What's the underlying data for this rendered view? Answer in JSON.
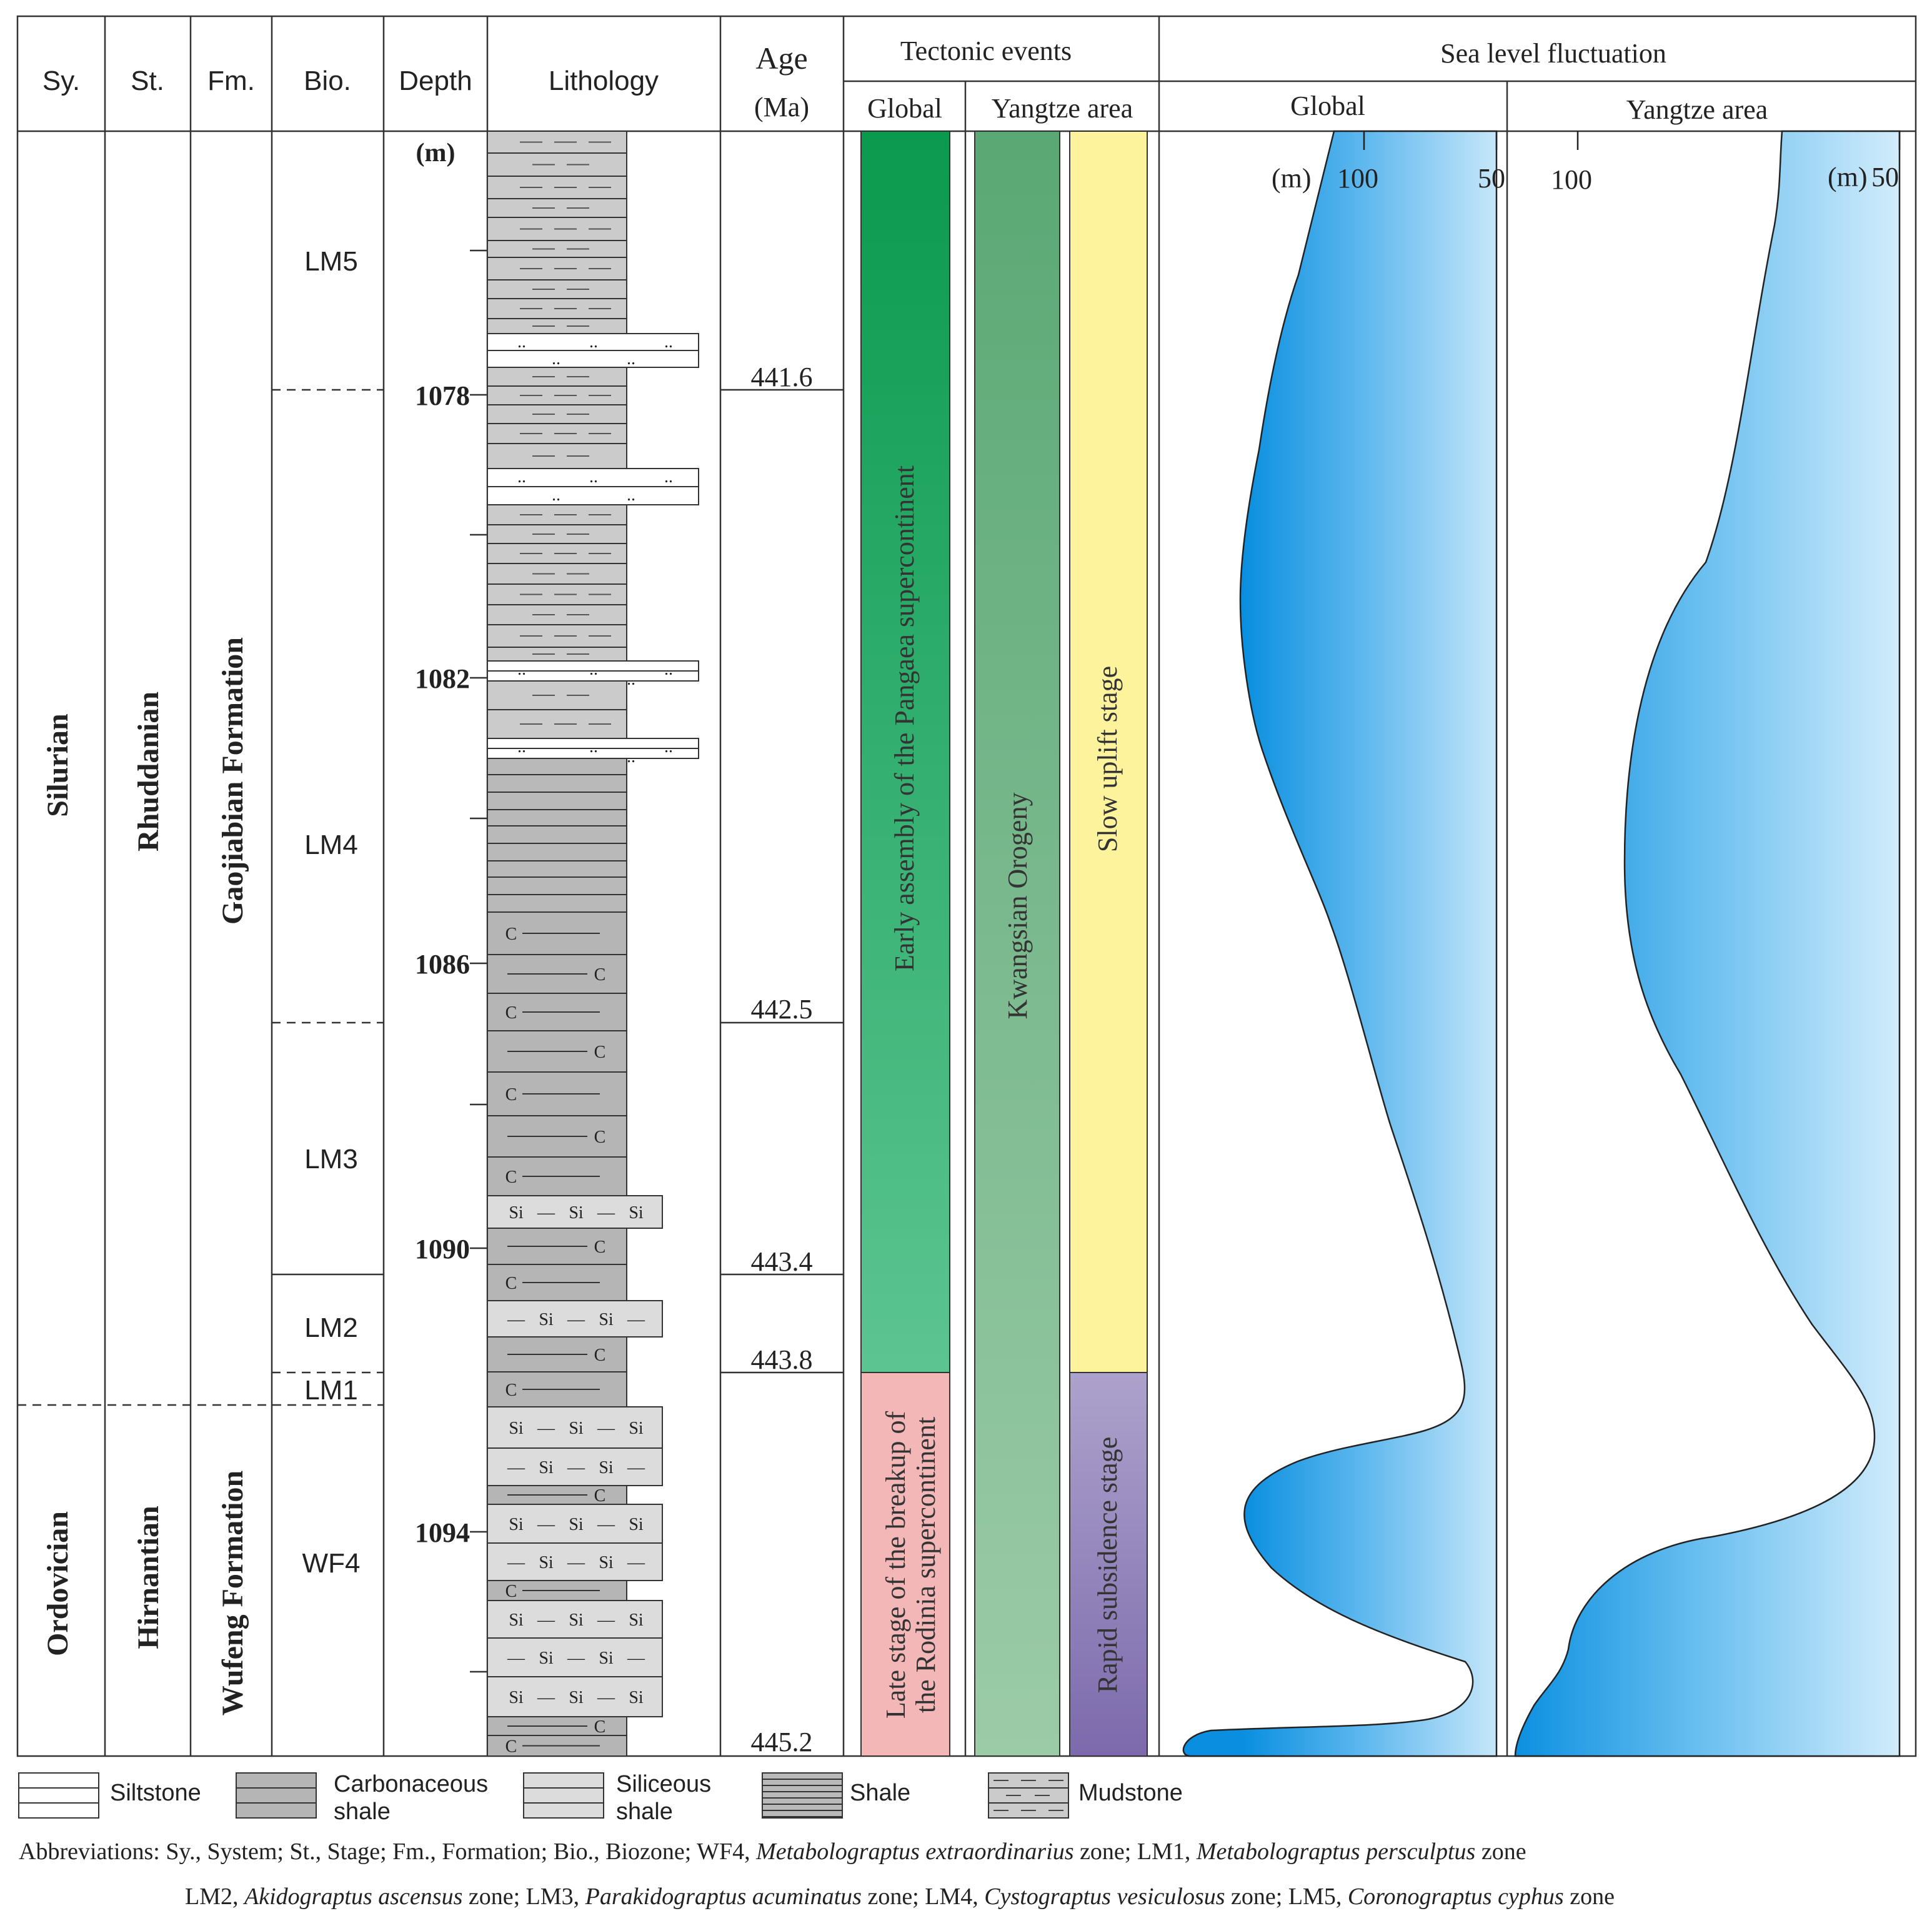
{
  "headers": {
    "system": "Sy.",
    "stage": "St.",
    "formation": "Fm.",
    "biozone": "Bio.",
    "depth": "Depth",
    "lithology": "Lithology",
    "age": "Age",
    "age_unit": "(Ma)",
    "tectonic": "Tectonic events",
    "tectonic_global": "Global",
    "tectonic_yangtze": "Yangtze area",
    "sea_level": "Sea  level  fluctuation",
    "sea_global": "Global",
    "sea_yangtze": "Yangtze area"
  },
  "depth_unit": "(m)",
  "depth_labels": [
    "1078",
    "1082",
    "1086",
    "1090",
    "1094"
  ],
  "systems": [
    "Silurian",
    "Ordovician"
  ],
  "stages": [
    "Rhuddanian",
    "Hirnantian"
  ],
  "formations": [
    "Gaojiabian  Formation",
    "Wufeng  Formation"
  ],
  "biozones": [
    "LM5",
    "LM4",
    "LM3",
    "LM2",
    "LM1",
    "WF4"
  ],
  "ages": [
    "441.6",
    "442.5",
    "443.4",
    "443.8",
    "445.2"
  ],
  "tectonic": {
    "global_upper": "Early assembly of the Pangaea supercontinent",
    "global_lower_1": "Late stage of the breakup of",
    "global_lower_2": "the Rodinia supercontinent",
    "yangtze_orogeny": "Kwangsian   Orogeny",
    "yangtze_upper": "Slow uplift stage",
    "yangtze_lower": "Rapid subsidence stage"
  },
  "sea_level": {
    "global_axis": {
      "unit": "(m)",
      "ticks": [
        "100",
        "50"
      ]
    },
    "yangtze_axis": {
      "unit": "(m)",
      "ticks": [
        "100",
        "50"
      ]
    }
  },
  "legend": [
    "Siltstone",
    "Carbonaceous shale",
    "Siliceous shale",
    "Shale",
    "Mudstone"
  ],
  "abbrev_line1": {
    "prefix": "Abbreviations: Sy., System; St., Stage; Fm., Formation;  Bio., Biozone;  WF4, ",
    "wf4": "Metabolograptus extraordinarius",
    "mid": " zone; LM1, ",
    "lm1": "Metabolograptus persculptus",
    "end": " zone"
  },
  "abbrev_line2": {
    "prefix": "LM2, ",
    "lm2": "Akidograptus ascensus",
    "a": " zone; LM3, ",
    "lm3": "Parakidograptus acuminatus",
    "b": " zone; LM4, ",
    "lm4": "Cystograptus vesiculosus",
    "c": " zone; LM5, ",
    "lm5": "Coronograptus cyphus",
    "end": " zone"
  },
  "colors": {
    "pangaea_top": "#0a9a4e",
    "pangaea_bottom": "#5cc491",
    "rodinia": "#f3b7b7",
    "kwangsian_top": "#5aa874",
    "kwangsian_bottom": "#9ccba8",
    "slow_uplift": "#fdf39d",
    "subsidence_top": "#ada2cc",
    "subsidence_bottom": "#7c6aac",
    "sea_deep": "#0a8fe0",
    "sea_light": "#d2ecfb",
    "mudstone_fill": "#cbcbcb",
    "shale_fill": "#b9b9b9",
    "carb_fill": "#b5b5b5",
    "sil_fill": "#dcdcdc"
  }
}
